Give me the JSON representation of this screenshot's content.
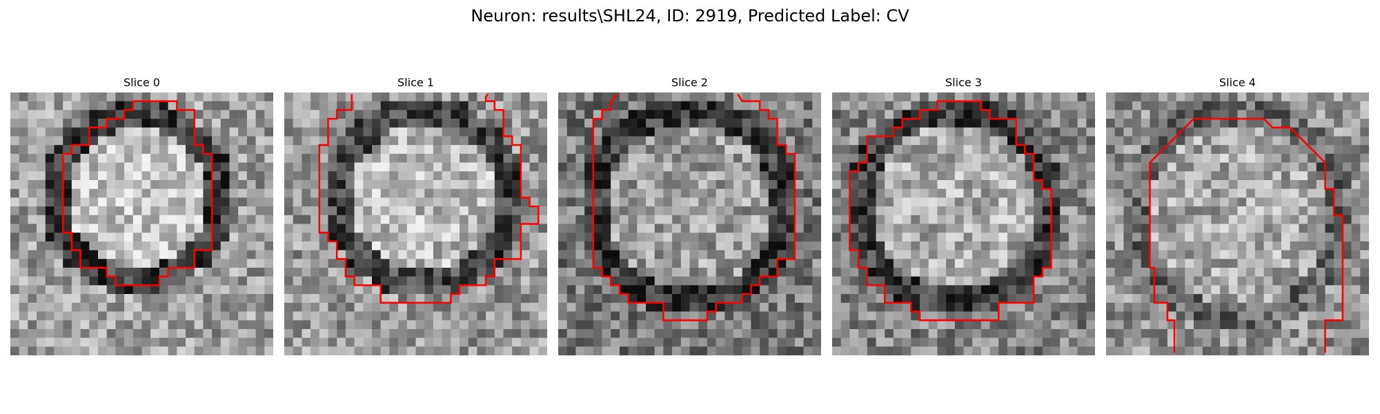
{
  "figure": {
    "title": "Neuron: results\\SHL24, ID: 2919, Predicted Label: CV"
  },
  "colors": {
    "contour": "#ff0000",
    "background": "#ffffff"
  },
  "slices": [
    {
      "label": "Slice 0"
    },
    {
      "label": "Slice 1"
    },
    {
      "label": "Slice 2"
    },
    {
      "label": "Slice 3"
    },
    {
      "label": "Slice 4"
    }
  ]
}
